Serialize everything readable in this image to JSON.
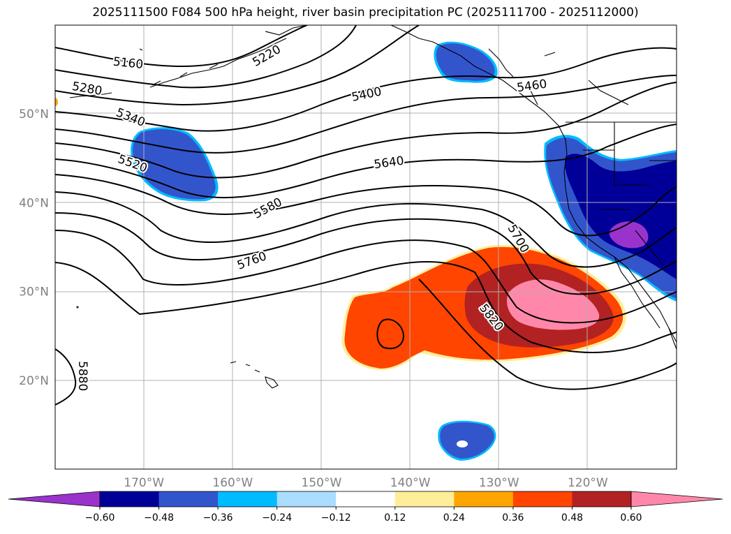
{
  "title": "2025111500 F084 500 hPa height, river basin precipitation PC (2025111700 - 2025112000)",
  "map": {
    "lat_labels": [
      {
        "lat": 50,
        "text": "50°N"
      },
      {
        "lat": 40,
        "text": "40°N"
      },
      {
        "lat": 30,
        "text": "30°N"
      },
      {
        "lat": 20,
        "text": "20°N"
      }
    ],
    "lon_labels": [
      {
        "lon": -170,
        "text": "170°W"
      },
      {
        "lon": -160,
        "text": "160°W"
      },
      {
        "lon": -150,
        "text": "150°W"
      },
      {
        "lon": -140,
        "text": "140°W"
      },
      {
        "lon": -130,
        "text": "130°W"
      },
      {
        "lon": -120,
        "text": "120°W"
      }
    ],
    "contour_labels": [
      "5160",
      "5220",
      "5280",
      "5340",
      "5400",
      "5460",
      "5520",
      "5580",
      "5640",
      "5700",
      "5760",
      "5820",
      "5880"
    ]
  },
  "colorbar": {
    "colors": [
      "#9933cc",
      "#000099",
      "#3355cc",
      "#00bbff",
      "#aaddff",
      "#ffffff",
      "#ffee99",
      "#ffa500",
      "#ff4500",
      "#b22222",
      "#ff88aa"
    ],
    "extend_low_color": "#9933cc",
    "extend_high_color": "#ff88aa",
    "tick_labels": [
      "−0.60",
      "−0.48",
      "−0.36",
      "−0.24",
      "−0.12",
      "0.12",
      "0.24",
      "0.36",
      "0.48",
      "0.60"
    ]
  }
}
